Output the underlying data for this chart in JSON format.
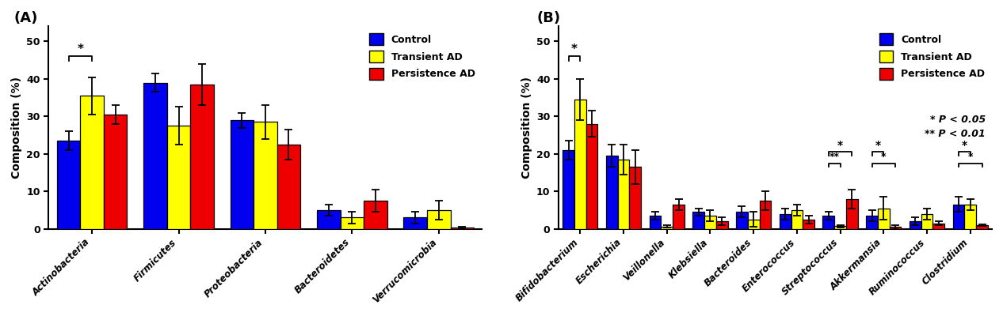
{
  "panel_A": {
    "title": "(A)",
    "categories": [
      "Actinobacteria",
      "Firmicutes",
      "Proteobacteria",
      "Bacteroidetes",
      "Verrucomicrobia"
    ],
    "control": [
      23.5,
      39.0,
      29.0,
      5.0,
      3.0
    ],
    "transient": [
      35.5,
      27.5,
      28.5,
      3.0,
      5.0
    ],
    "persistence": [
      30.5,
      38.5,
      22.5,
      7.5,
      0.3
    ],
    "control_err": [
      2.5,
      2.5,
      2.0,
      1.5,
      1.5
    ],
    "transient_err": [
      5.0,
      5.0,
      4.5,
      1.5,
      2.5
    ],
    "persistence_err": [
      2.5,
      5.5,
      4.0,
      3.0,
      0.2
    ],
    "ylabel": "Composition (%)",
    "ylim": [
      0,
      54
    ],
    "yticks": [
      0,
      10,
      20,
      30,
      40,
      50
    ]
  },
  "panel_B": {
    "title": "(B)",
    "categories": [
      "Bifidobacterium",
      "Escherichia",
      "Veillonella",
      "Klebsiella",
      "Bacteroides",
      "Enterococcus",
      "Streptococcus",
      "Akkermansia",
      "Ruminococcus",
      "Clostridium"
    ],
    "control": [
      21.0,
      19.5,
      3.5,
      4.5,
      4.5,
      4.0,
      3.5,
      3.5,
      2.0,
      6.5
    ],
    "transient": [
      34.5,
      18.5,
      0.6,
      3.5,
      2.5,
      5.0,
      0.7,
      5.5,
      4.0,
      6.5
    ],
    "persistence": [
      28.0,
      16.5,
      6.5,
      2.0,
      7.5,
      2.5,
      8.0,
      0.5,
      1.5,
      1.0
    ],
    "control_err": [
      2.5,
      3.0,
      1.0,
      1.0,
      1.5,
      1.5,
      1.0,
      1.5,
      1.0,
      2.0
    ],
    "transient_err": [
      5.5,
      4.0,
      0.3,
      1.5,
      2.0,
      1.5,
      0.3,
      3.0,
      1.5,
      1.5
    ],
    "persistence_err": [
      3.5,
      4.5,
      1.5,
      1.0,
      2.5,
      1.0,
      2.5,
      0.5,
      0.5,
      0.3
    ],
    "ylabel": "Composition (%)",
    "ylim": [
      0,
      54
    ],
    "yticks": [
      0,
      10,
      20,
      30,
      40,
      50
    ]
  },
  "colors": {
    "control": "#0000EE",
    "transient": "#FFFF00",
    "persistence": "#EE0000",
    "edge": "#000000"
  },
  "legend_labels": [
    "Control",
    "Transient AD",
    "Persistence AD"
  ],
  "pvalue_lines": [
    "* P < 0.05",
    "** P < 0.01"
  ]
}
